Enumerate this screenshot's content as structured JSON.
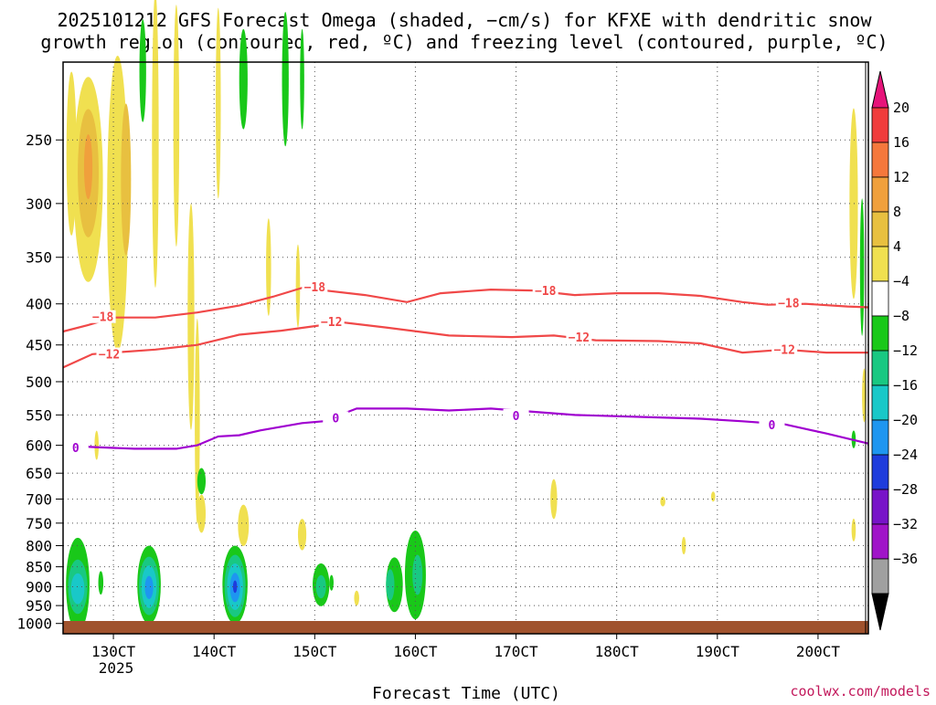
{
  "chart_data": {
    "type": "heatmap",
    "title_lines": [
      "2025101212 GFS Forecast Omega (shaded, −cm/s) for KFXE with dendritic snow",
      "growth region (contoured, red, ºC) and freezing level (contoured, purple, ºC)"
    ],
    "xlabel": "Forecast Time (UTC)",
    "x_ticks": [
      "130CT",
      "140CT",
      "150CT",
      "160CT",
      "170CT",
      "180CT",
      "190CT",
      "200CT"
    ],
    "x_year": "2025",
    "x_range_hours": [
      -12,
      180
    ],
    "y_ticks": [
      250,
      300,
      350,
      400,
      450,
      500,
      550,
      600,
      650,
      700,
      750,
      800,
      850,
      900,
      950,
      1000
    ],
    "y_range_hPa": [
      200,
      1030
    ],
    "credit": "coolwx.com/models",
    "colorbar": {
      "labels": [
        "20",
        "16",
        "12",
        "8",
        "4",
        "−4",
        "−8",
        "−12",
        "−16",
        "−20",
        "−24",
        "−28",
        "−32",
        "−36"
      ],
      "colors": [
        "#f03c3c",
        "#f5783c",
        "#f0a03c",
        "#e8c040",
        "#f0e050",
        "#ffffff",
        "#19c819",
        "#19c882",
        "#19c8c8",
        "#1e96f0",
        "#1e3cdc",
        "#7814c8",
        "#a014c8",
        "#a0a0a0"
      ],
      "over_color": "#e6147a",
      "under_color": "#000000"
    },
    "contours": [
      {
        "name": "-18 dendritic isotherm",
        "label": "−18",
        "color": "#f04848",
        "points": [
          [
            -12,
            433
          ],
          [
            -6,
            425
          ],
          [
            0,
            416
          ],
          [
            10,
            416
          ],
          [
            20,
            410
          ],
          [
            30,
            402
          ],
          [
            38,
            392
          ],
          [
            45,
            382
          ],
          [
            60,
            390
          ],
          [
            70,
            398
          ],
          [
            78,
            388
          ],
          [
            90,
            384
          ],
          [
            100,
            385
          ],
          [
            110,
            390
          ],
          [
            120,
            388
          ],
          [
            130,
            388
          ],
          [
            140,
            391
          ],
          [
            150,
            398
          ],
          [
            156,
            401
          ],
          [
            165,
            400
          ],
          [
            175,
            403
          ],
          [
            180,
            404
          ]
        ],
        "label_at": [
          [
            -2.5,
            416
          ],
          [
            48,
            382
          ],
          [
            103,
            386
          ],
          [
            161,
            400
          ]
        ]
      },
      {
        "name": "-12 dendritic isotherm",
        "label": "−12",
        "color": "#f04848",
        "points": [
          [
            -12,
            480
          ],
          [
            -5,
            462
          ],
          [
            0,
            460
          ],
          [
            10,
            456
          ],
          [
            20,
            450
          ],
          [
            30,
            437
          ],
          [
            40,
            432
          ],
          [
            50,
            425
          ],
          [
            55,
            422
          ],
          [
            65,
            428
          ],
          [
            80,
            438
          ],
          [
            95,
            440
          ],
          [
            105,
            438
          ],
          [
            115,
            444
          ],
          [
            130,
            445
          ],
          [
            140,
            448
          ],
          [
            150,
            460
          ],
          [
            160,
            456
          ],
          [
            170,
            460
          ],
          [
            180,
            460
          ]
        ],
        "label_at": [
          [
            -1,
            463
          ],
          [
            52,
            422
          ],
          [
            111,
            441
          ],
          [
            160,
            457
          ]
        ]
      },
      {
        "name": "freezing level",
        "label": "0",
        "color": "#a000d0",
        "points": [
          [
            -12,
            600
          ],
          [
            -5,
            603
          ],
          [
            5,
            606
          ],
          [
            15,
            606
          ],
          [
            20,
            600
          ],
          [
            25,
            585
          ],
          [
            30,
            583
          ],
          [
            35,
            575
          ],
          [
            45,
            563
          ],
          [
            50,
            560
          ],
          [
            58,
            540
          ],
          [
            70,
            540
          ],
          [
            80,
            543
          ],
          [
            90,
            540
          ],
          [
            100,
            545
          ],
          [
            110,
            550
          ],
          [
            130,
            554
          ],
          [
            140,
            556
          ],
          [
            150,
            560
          ],
          [
            160,
            565
          ],
          [
            170,
            580
          ],
          [
            180,
            597
          ]
        ],
        "label_at": [
          [
            -9,
            605
          ],
          [
            53,
            556
          ],
          [
            96,
            552
          ],
          [
            157,
            567
          ]
        ]
      }
    ],
    "shaded_regions": [
      {
        "omega_class": "-8",
        "color": "#19c819",
        "cx": -8.5,
        "cy": 895,
        "rx": 2.8,
        "ry": 120
      },
      {
        "omega_class": "-12",
        "color": "#19c882",
        "cx": -8.5,
        "cy": 900,
        "rx": 2.3,
        "ry": 70
      },
      {
        "omega_class": "-16",
        "color": "#19c8c8",
        "cx": -8.5,
        "cy": 905,
        "rx": 1.6,
        "ry": 40
      },
      {
        "omega_class": "-8",
        "color": "#19c819",
        "cx": 8.5,
        "cy": 895,
        "rx": 2.8,
        "ry": 100
      },
      {
        "omega_class": "-12",
        "color": "#19c882",
        "cx": 8.5,
        "cy": 898,
        "rx": 2.4,
        "ry": 75
      },
      {
        "omega_class": "-16",
        "color": "#19c8c8",
        "cx": 8.5,
        "cy": 900,
        "rx": 1.8,
        "ry": 55
      },
      {
        "omega_class": "-20",
        "color": "#1e96f0",
        "cx": 8.5,
        "cy": 902,
        "rx": 1.0,
        "ry": 30
      },
      {
        "omega_class": "-8",
        "color": "#19c819",
        "cx": 29,
        "cy": 895,
        "rx": 3.0,
        "ry": 100
      },
      {
        "omega_class": "-12",
        "color": "#19c882",
        "cx": 29,
        "cy": 898,
        "rx": 2.5,
        "ry": 80
      },
      {
        "omega_class": "-16",
        "color": "#19c8c8",
        "cx": 29,
        "cy": 900,
        "rx": 1.9,
        "ry": 60
      },
      {
        "omega_class": "-20",
        "color": "#1e96f0",
        "cx": 29,
        "cy": 902,
        "rx": 1.2,
        "ry": 38
      },
      {
        "omega_class": "-24",
        "color": "#1e3cdc",
        "cx": 29,
        "cy": 900,
        "rx": 0.5,
        "ry": 16
      },
      {
        "omega_class": "-8",
        "color": "#19c819",
        "cx": 49.5,
        "cy": 895,
        "rx": 2.0,
        "ry": 55
      },
      {
        "omega_class": "-12",
        "color": "#19c882",
        "cx": 49.5,
        "cy": 900,
        "rx": 1.2,
        "ry": 30
      },
      {
        "omega_class": "-8",
        "color": "#19c819",
        "cx": 67,
        "cy": 895,
        "rx": 2.0,
        "ry": 70
      },
      {
        "omega_class": "-12",
        "color": "#19c882",
        "cx": 66,
        "cy": 895,
        "rx": 1.0,
        "ry": 40
      },
      {
        "omega_class": "-8",
        "color": "#19c819",
        "cx": 72,
        "cy": 870,
        "rx": 2.5,
        "ry": 110
      },
      {
        "omega_class": "-12",
        "color": "#19c882",
        "cx": 72.5,
        "cy": 870,
        "rx": 1.2,
        "ry": 50
      },
      {
        "omega_class": "-8",
        "color": "#19c819",
        "cx": -3,
        "cy": 890,
        "rx": 0.6,
        "ry": 30
      },
      {
        "omega_class": "-8",
        "color": "#19c819",
        "cx": 52,
        "cy": 890,
        "rx": 0.5,
        "ry": 20
      },
      {
        "omega_class": "4",
        "color": "#f0e050",
        "cx": -6,
        "cy": 280,
        "rx": 3.5,
        "ry": 80
      },
      {
        "omega_class": "8",
        "color": "#e8c040",
        "cx": -6,
        "cy": 275,
        "rx": 2.5,
        "ry": 50
      },
      {
        "omega_class": "12",
        "color": "#f0a03c",
        "cx": -6,
        "cy": 270,
        "rx": 1.0,
        "ry": 25
      },
      {
        "omega_class": "4",
        "color": "#f0e050",
        "cx": 1,
        "cy": 300,
        "rx": 2.5,
        "ry": 120
      },
      {
        "omega_class": "8",
        "color": "#e8c040",
        "cx": 3,
        "cy": 280,
        "rx": 1.2,
        "ry": 60
      },
      {
        "omega_class": "4",
        "color": "#f0e050",
        "cx": -10,
        "cy": 260,
        "rx": 1.2,
        "ry": 60
      },
      {
        "omega_class": "4",
        "color": "#f0e050",
        "cx": 18.5,
        "cy": 415,
        "rx": 0.8,
        "ry": 130
      },
      {
        "omega_class": "4",
        "color": "#f0e050",
        "cx": 20,
        "cy": 560,
        "rx": 0.6,
        "ry": 160
      },
      {
        "omega_class": "4",
        "color": "#f0e050",
        "cx": 15,
        "cy": 240,
        "rx": 0.7,
        "ry": 80
      },
      {
        "omega_class": "4",
        "color": "#f0e050",
        "cx": 25,
        "cy": 225,
        "rx": 0.6,
        "ry": 60
      },
      {
        "omega_class": "4",
        "color": "#f0e050",
        "cx": 10,
        "cy": 250,
        "rx": 0.8,
        "ry": 100
      },
      {
        "omega_class": "4",
        "color": "#f0e050",
        "cx": -4,
        "cy": 600,
        "rx": 0.5,
        "ry": 25
      },
      {
        "omega_class": "4",
        "color": "#f0e050",
        "cx": 21,
        "cy": 730,
        "rx": 1.0,
        "ry": 40
      },
      {
        "omega_class": "4",
        "color": "#f0e050",
        "cx": 31,
        "cy": 755,
        "rx": 1.3,
        "ry": 45
      },
      {
        "omega_class": "4",
        "color": "#f0e050",
        "cx": 37,
        "cy": 360,
        "rx": 0.6,
        "ry": 50
      },
      {
        "omega_class": "4",
        "color": "#f0e050",
        "cx": 45,
        "cy": 775,
        "rx": 1.0,
        "ry": 35
      },
      {
        "omega_class": "4",
        "color": "#f0e050",
        "cx": 44,
        "cy": 380,
        "rx": 0.5,
        "ry": 45
      },
      {
        "omega_class": "4",
        "color": "#f0e050",
        "cx": 58,
        "cy": 930,
        "rx": 0.6,
        "ry": 20
      },
      {
        "omega_class": "4",
        "color": "#f0e050",
        "cx": 136,
        "cy": 800,
        "rx": 0.5,
        "ry": 20
      },
      {
        "omega_class": "4",
        "color": "#f0e050",
        "cx": 131,
        "cy": 705,
        "rx": 0.6,
        "ry": 10
      },
      {
        "omega_class": "4",
        "color": "#f0e050",
        "cx": 105,
        "cy": 700,
        "rx": 0.8,
        "ry": 40
      },
      {
        "omega_class": "4",
        "color": "#f0e050",
        "cx": 143,
        "cy": 695,
        "rx": 0.5,
        "ry": 10
      },
      {
        "omega_class": "4",
        "color": "#f0e050",
        "cx": 176.5,
        "cy": 300,
        "rx": 1.0,
        "ry": 80
      },
      {
        "omega_class": "4",
        "color": "#f0e050",
        "cx": 176.5,
        "cy": 765,
        "rx": 0.5,
        "ry": 25
      },
      {
        "omega_class": "4",
        "color": "#f0e050",
        "cx": 179,
        "cy": 520,
        "rx": 0.5,
        "ry": 40
      },
      {
        "omega_class": "-8",
        "color": "#19c819",
        "cx": 178.5,
        "cy": 360,
        "rx": 0.5,
        "ry": 70
      },
      {
        "omega_class": "-8",
        "color": "#19c819",
        "cx": 176.5,
        "cy": 590,
        "rx": 0.5,
        "ry": 15
      },
      {
        "omega_class": "-8",
        "color": "#19c819",
        "cx": 7,
        "cy": 205,
        "rx": 0.8,
        "ry": 30
      },
      {
        "omega_class": "-8",
        "color": "#19c819",
        "cx": 31,
        "cy": 210,
        "rx": 1.0,
        "ry": 30
      },
      {
        "omega_class": "-8",
        "color": "#19c819",
        "cx": 41,
        "cy": 210,
        "rx": 0.8,
        "ry": 40
      },
      {
        "omega_class": "-8",
        "color": "#19c819",
        "cx": 21,
        "cy": 665,
        "rx": 1.0,
        "ry": 25
      },
      {
        "omega_class": "-8",
        "color": "#19c819",
        "cx": 45,
        "cy": 210,
        "rx": 0.5,
        "ry": 30
      }
    ]
  }
}
